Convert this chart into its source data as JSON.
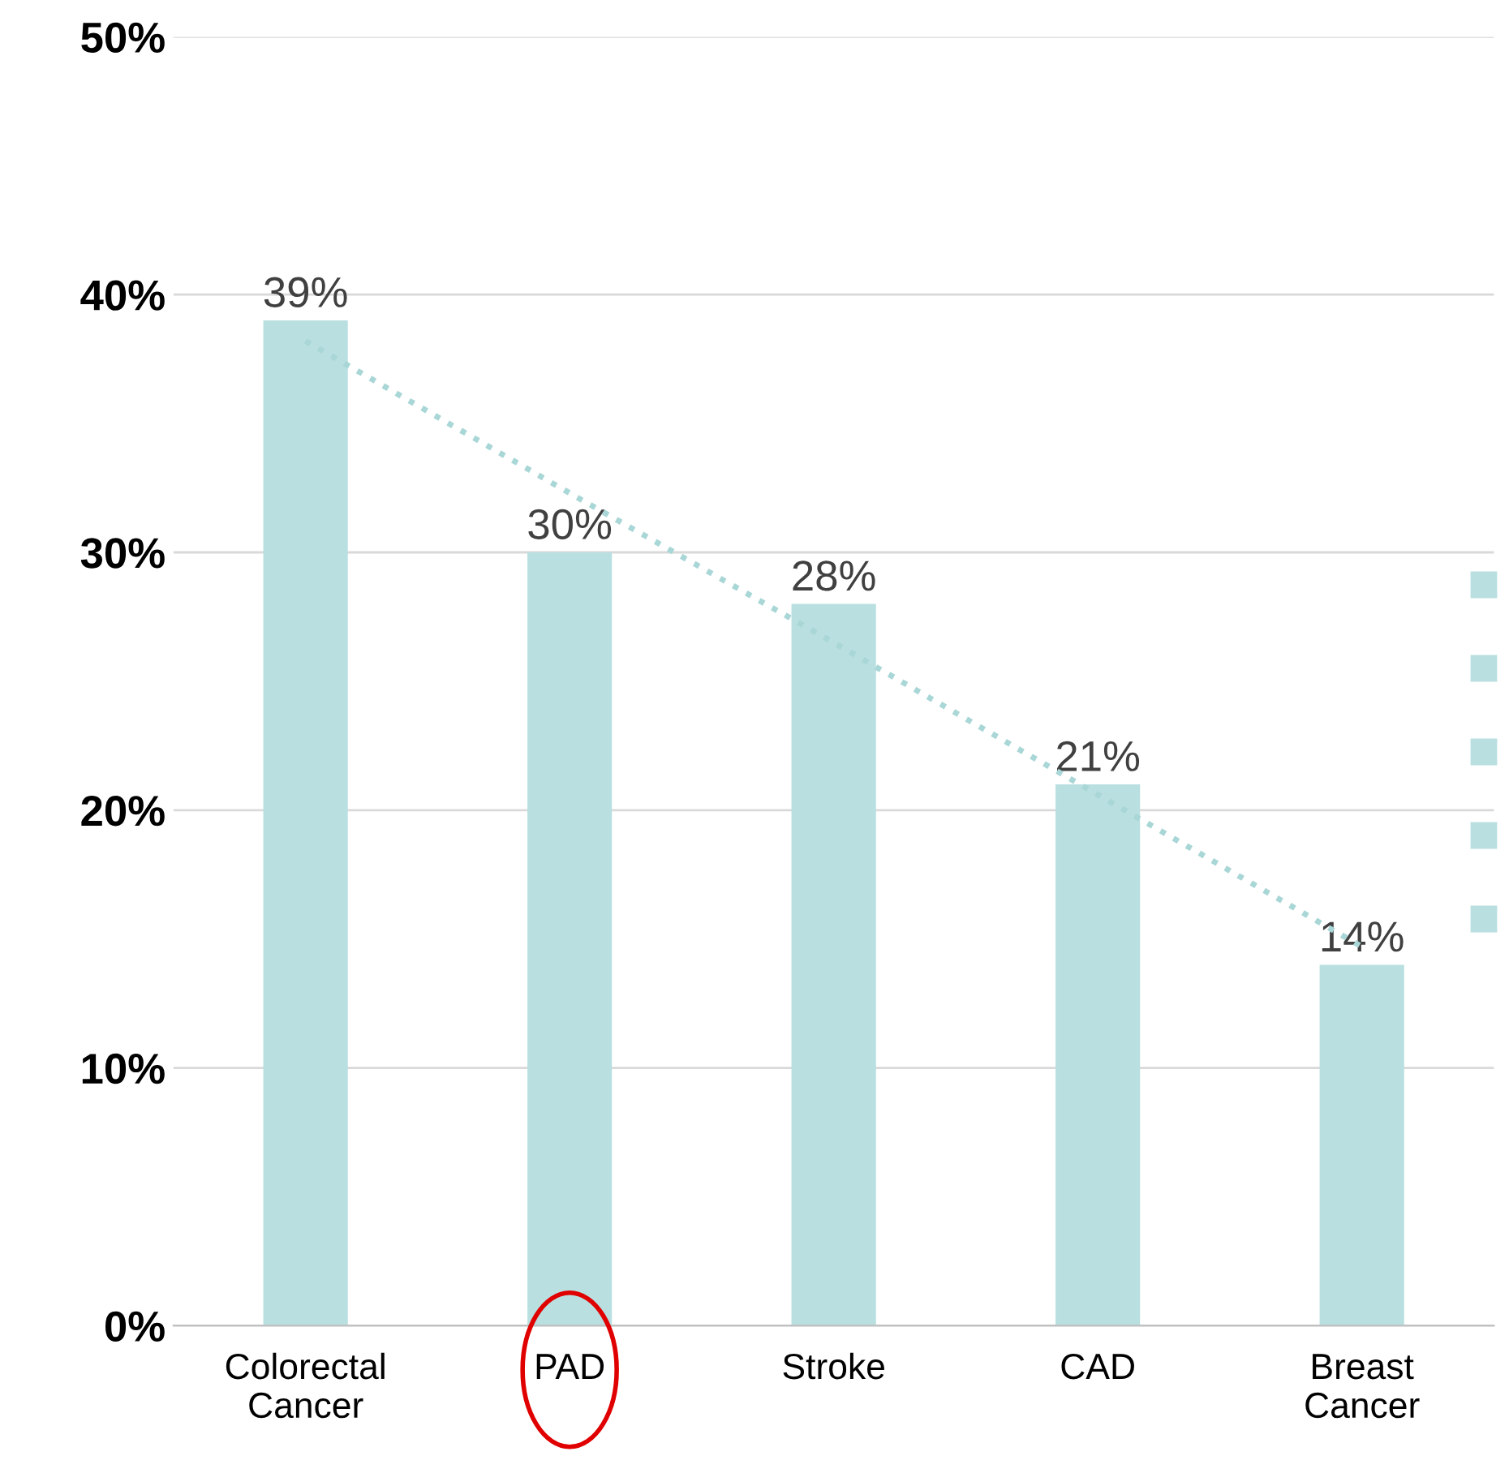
{
  "chart_data": {
    "type": "bar",
    "categories": [
      "Colorectal\nCancer",
      "PAD",
      "Stroke",
      "CAD",
      "Breast\nCancer"
    ],
    "series": [
      {
        "color": "#b9dfe0",
        "values": [
          39,
          30,
          28,
          21,
          14
        ]
      },
      {
        "type": "line",
        "color": "#a9d6d6",
        "line_style": "dotted",
        "values": [
          38.2,
          32.3,
          26.5,
          20.6,
          14.7
        ]
      }
    ],
    "value_labels": [
      "39%",
      "30%",
      "28%",
      "21%",
      "14%"
    ],
    "ylim": [
      0,
      50
    ],
    "yticks": [
      {
        "value": 0,
        "label": "0%"
      },
      {
        "value": 10,
        "label": "10%"
      },
      {
        "value": 20,
        "label": "20%"
      },
      {
        "value": 30,
        "label": "30%"
      },
      {
        "value": 40,
        "label": "40%"
      },
      {
        "value": 50,
        "label": "50%"
      }
    ],
    "grid": "y",
    "legend": false
  }
}
